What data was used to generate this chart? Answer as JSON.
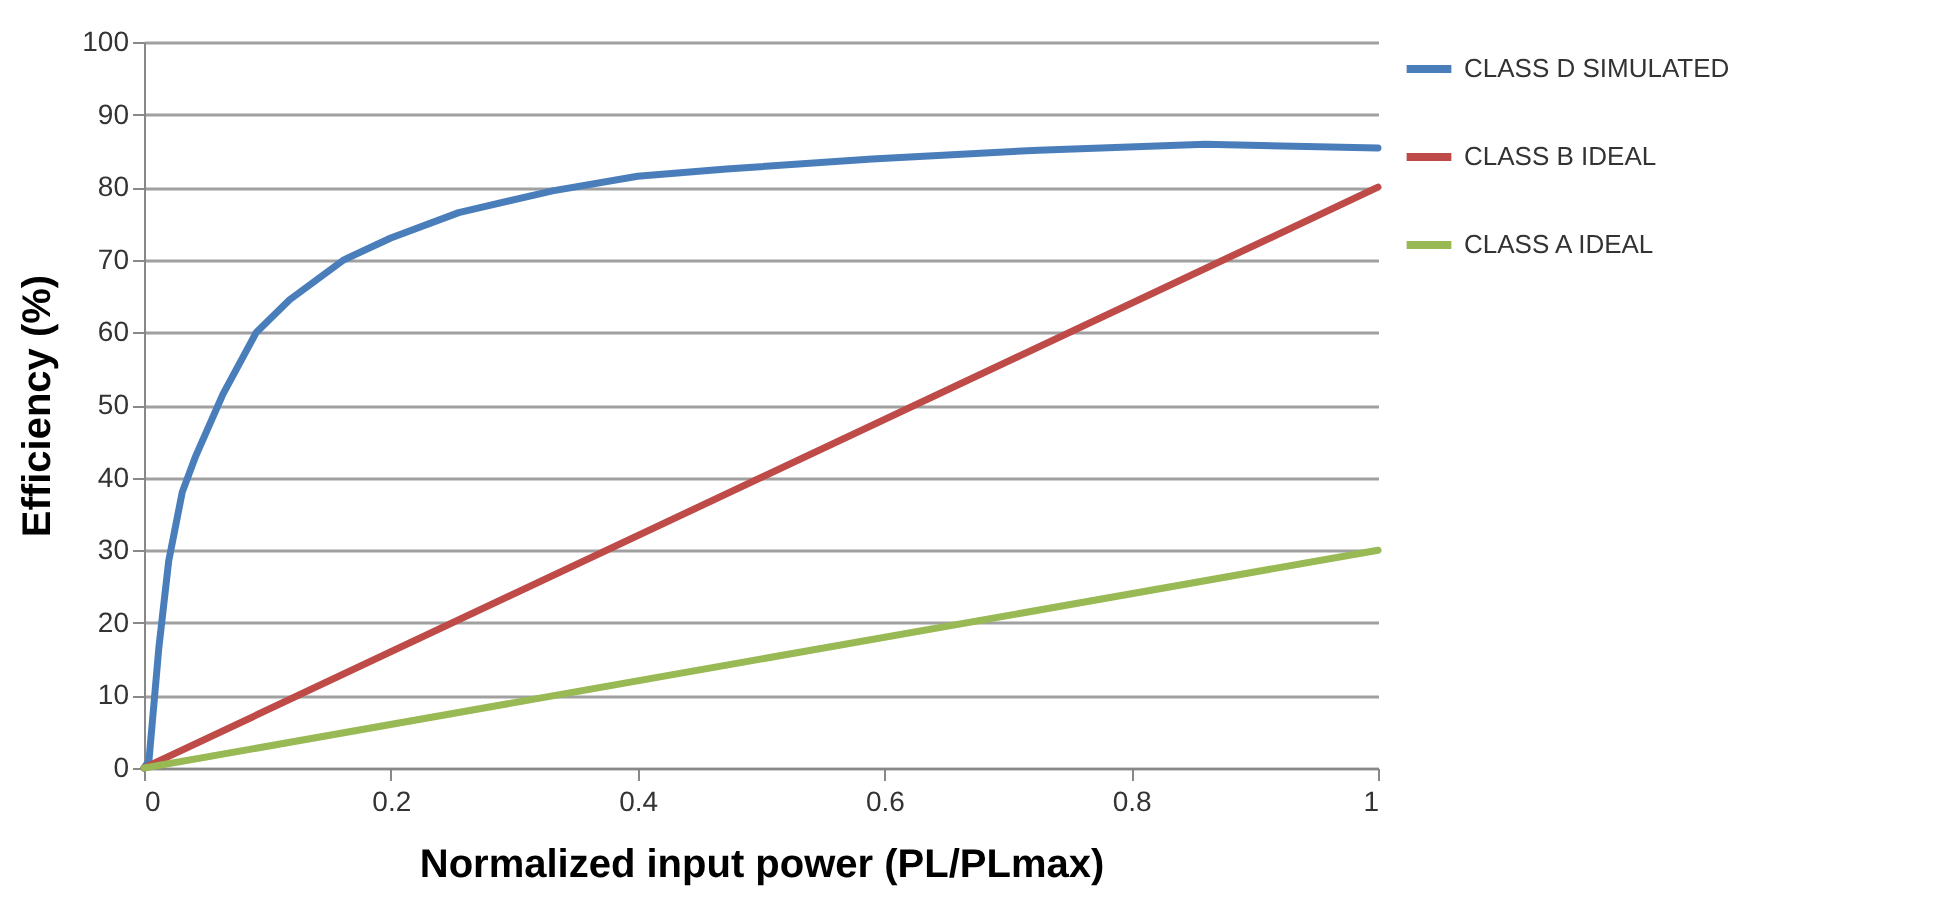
{
  "chart_data": {
    "type": "line",
    "xlabel": "Normalized input power (PL/PLmax)",
    "ylabel": "Efficiency (%)",
    "xlim": [
      0,
      1
    ],
    "ylim": [
      0,
      100
    ],
    "xticks": [
      0,
      0.2,
      0.4,
      0.6,
      0.8,
      1
    ],
    "yticks": [
      0,
      10,
      20,
      30,
      40,
      50,
      60,
      70,
      80,
      90,
      100
    ],
    "grid": "y",
    "legend": "right",
    "series": [
      {
        "name": "CLASS D SIMULATED",
        "color": "#4a7ebb",
        "x": [
          0,
          0.004,
          0.012,
          0.02,
          0.031,
          0.042,
          0.064,
          0.091,
          0.118,
          0.162,
          0.2,
          0.255,
          0.331,
          0.4,
          0.472,
          0.59,
          0.725,
          0.86,
          1
        ],
        "values": [
          0,
          1,
          16.5,
          28.5,
          38,
          43,
          51.5,
          60,
          64.5,
          70,
          73,
          76.5,
          79.5,
          81.5,
          82.5,
          83.9,
          85.1,
          85.9,
          85.4
        ]
      },
      {
        "name": "CLASS B IDEAL",
        "color": "#be4b48",
        "x": [
          0,
          1
        ],
        "values": [
          0,
          80
        ]
      },
      {
        "name": "CLASS A IDEAL",
        "color": "#98b954",
        "x": [
          0,
          1
        ],
        "values": [
          0,
          30
        ]
      }
    ]
  }
}
